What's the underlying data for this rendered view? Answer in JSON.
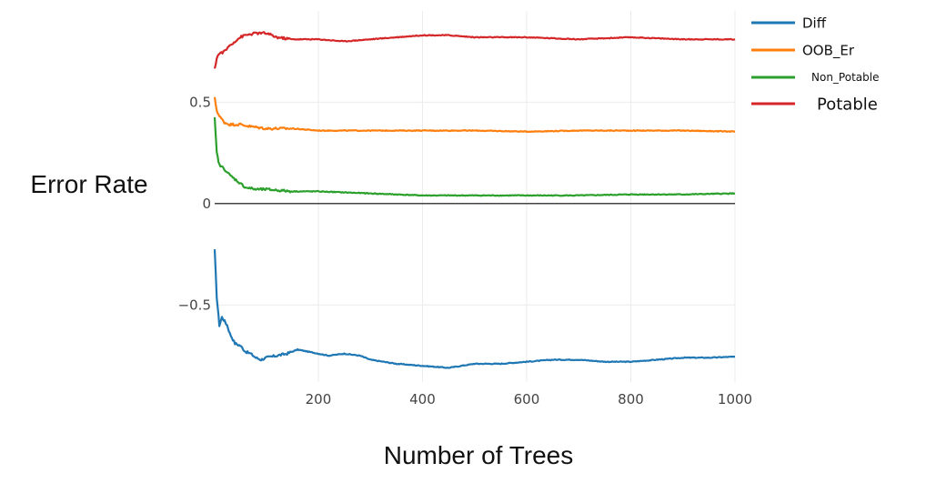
{
  "chart_data": {
    "type": "line",
    "title": "",
    "xlabel": "Number of Trees",
    "ylabel": "Error Rate",
    "xlim": [
      1,
      1000
    ],
    "ylim": [
      -0.88,
      0.95
    ],
    "xticks": [
      200,
      400,
      600,
      800,
      1000
    ],
    "yticks": [
      -0.5,
      0,
      0.5
    ],
    "ytick_labels": [
      "−0.5",
      "0",
      "0.5"
    ],
    "grid": true,
    "zero_line": true,
    "legend_position": "top-right",
    "series": [
      {
        "name": "Diff",
        "color": "#1f77b4",
        "x": [
          1,
          5,
          10,
          15,
          20,
          25,
          30,
          40,
          50,
          60,
          70,
          80,
          90,
          100,
          120,
          140,
          160,
          180,
          200,
          220,
          250,
          280,
          300,
          350,
          400,
          450,
          500,
          550,
          600,
          650,
          700,
          750,
          800,
          850,
          900,
          950,
          1000
        ],
        "y": [
          -0.23,
          -0.46,
          -0.6,
          -0.56,
          -0.58,
          -0.6,
          -0.64,
          -0.69,
          -0.7,
          -0.73,
          -0.74,
          -0.76,
          -0.77,
          -0.76,
          -0.75,
          -0.74,
          -0.72,
          -0.73,
          -0.74,
          -0.75,
          -0.74,
          -0.75,
          -0.77,
          -0.79,
          -0.8,
          -0.81,
          -0.79,
          -0.79,
          -0.78,
          -0.77,
          -0.77,
          -0.78,
          -0.78,
          -0.77,
          -0.76,
          -0.76,
          -0.755
        ]
      },
      {
        "name": "OOB_Er",
        "color": "#ff7f0e",
        "x": [
          1,
          5,
          10,
          20,
          30,
          50,
          70,
          100,
          150,
          200,
          250,
          300,
          400,
          500,
          600,
          700,
          800,
          900,
          1000
        ],
        "y": [
          0.52,
          0.46,
          0.43,
          0.4,
          0.39,
          0.39,
          0.38,
          0.37,
          0.37,
          0.36,
          0.36,
          0.36,
          0.36,
          0.36,
          0.355,
          0.36,
          0.36,
          0.36,
          0.355
        ]
      },
      {
        "name": "Non_Potable",
        "color": "#2ca02c",
        "x": [
          1,
          5,
          10,
          20,
          30,
          40,
          50,
          60,
          80,
          100,
          150,
          200,
          250,
          300,
          350,
          400,
          500,
          600,
          700,
          800,
          900,
          1000
        ],
        "y": [
          0.42,
          0.25,
          0.19,
          0.17,
          0.14,
          0.12,
          0.1,
          0.08,
          0.07,
          0.07,
          0.06,
          0.06,
          0.055,
          0.05,
          0.045,
          0.04,
          0.04,
          0.04,
          0.04,
          0.045,
          0.045,
          0.05
        ]
      },
      {
        "name": "Potable",
        "color": "#d62728",
        "x": [
          1,
          5,
          10,
          20,
          30,
          40,
          50,
          60,
          80,
          100,
          120,
          150,
          200,
          250,
          300,
          350,
          400,
          450,
          500,
          600,
          700,
          800,
          900,
          1000
        ],
        "y": [
          0.66,
          0.72,
          0.74,
          0.75,
          0.78,
          0.8,
          0.82,
          0.83,
          0.84,
          0.84,
          0.82,
          0.81,
          0.81,
          0.8,
          0.81,
          0.82,
          0.83,
          0.83,
          0.82,
          0.82,
          0.81,
          0.82,
          0.81,
          0.81
        ]
      }
    ]
  }
}
